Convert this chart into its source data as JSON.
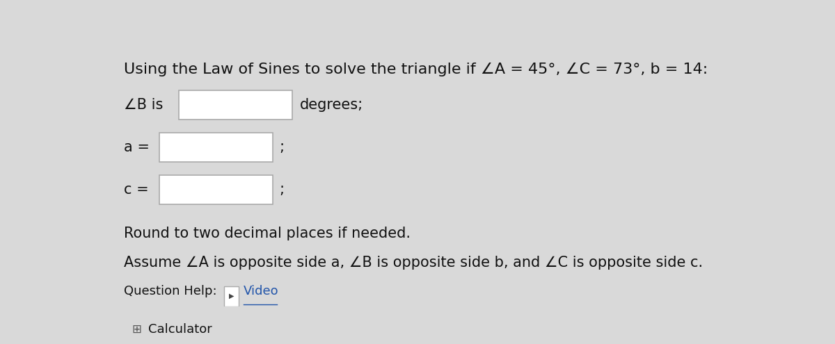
{
  "title_text": "Using the Law of Sines to solve the triangle if ∠A = 45°, ∠C = 73°, b = 14:",
  "line1_label": "∠B is",
  "line1_suffix": "degrees;",
  "line2_label": "a =",
  "line2_suffix": ";",
  "line3_label": "c =",
  "line3_suffix": ";",
  "note_line1": "Round to two decimal places if needed.",
  "note_line2": "Assume ∠A is opposite side a, ∠B is opposite side b, and ∠C is opposite side c.",
  "help_label": "Question Help:",
  "video_label": "Video",
  "calculator_label": "Calculator",
  "bg_color": "#d9d9d9",
  "box_color": "#ffffff",
  "box_border_color": "#aaaaaa",
  "title_fontsize": 16,
  "body_fontsize": 15,
  "small_fontsize": 13,
  "link_color": "#2255aa",
  "text_color": "#111111"
}
